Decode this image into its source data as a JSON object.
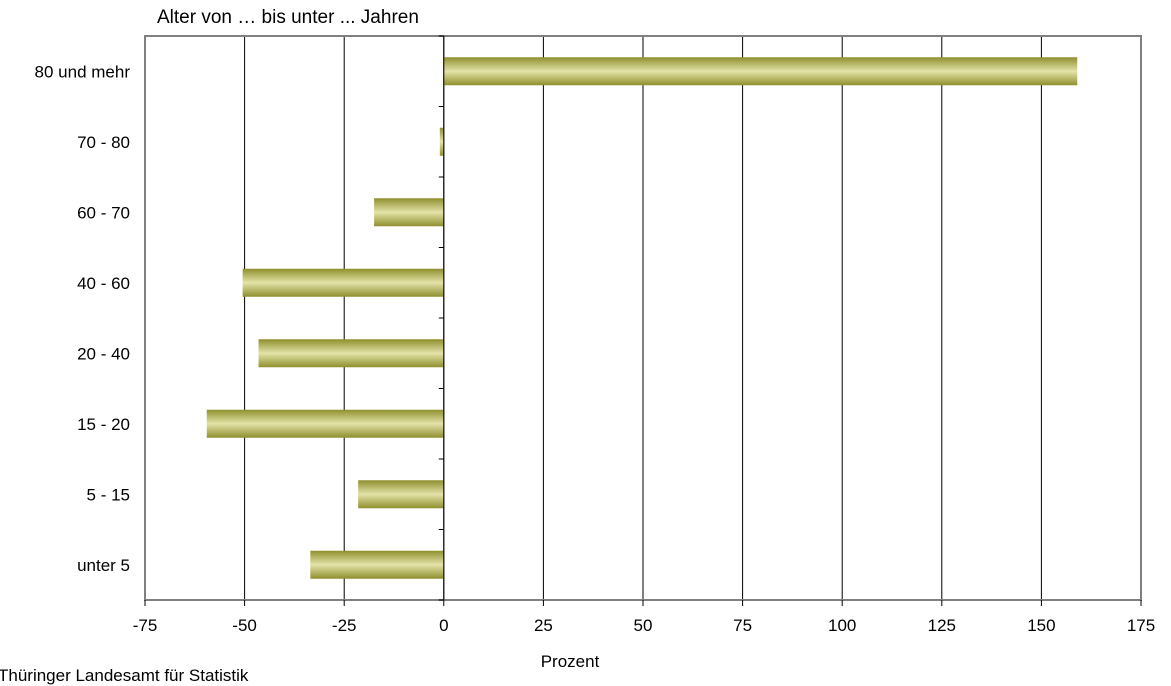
{
  "chart_data": {
    "type": "bar",
    "orientation": "horizontal",
    "title": "Alter von … bis unter ... Jahren",
    "xlabel": "Prozent",
    "ylabel": "",
    "categories": [
      "80 und mehr",
      "70 - 80",
      "60 - 70",
      "40 - 60",
      "20 - 40",
      "15 - 20",
      "5 - 15",
      "unter 5"
    ],
    "values": [
      159,
      -1,
      -17.5,
      -50.5,
      -46.5,
      -59.5,
      -21.5,
      -33.5
    ],
    "xlim": [
      -75,
      175
    ],
    "xticks": [
      -75,
      -50,
      -25,
      0,
      25,
      50,
      75,
      100,
      125,
      150,
      175
    ],
    "xtick_labels": [
      "-75",
      "-50",
      "-25",
      "0",
      "25",
      "50",
      "75",
      "100",
      "125",
      "150",
      "175"
    ],
    "grid": "vertical",
    "legend": "none",
    "bar_color": "#8f8f2e",
    "bar_highlight_color": "#e3e3a8",
    "grid_color": "#000000",
    "frame_color": "#808080"
  },
  "footer": {
    "source": "Thüringer Landesamt für Statistik"
  }
}
